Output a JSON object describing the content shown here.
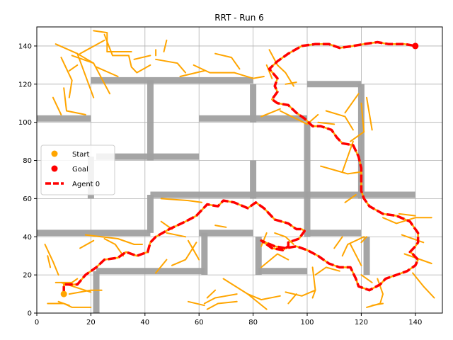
{
  "chart_data": {
    "type": "line",
    "title": "RRT - Run 6",
    "xlabel": "",
    "ylabel": "",
    "xlim": [
      0,
      150
    ],
    "ylim": [
      0,
      150
    ],
    "xticks": [
      0,
      20,
      40,
      60,
      80,
      100,
      120,
      140
    ],
    "yticks": [
      0,
      20,
      40,
      60,
      80,
      100,
      120,
      140
    ],
    "grid": true,
    "legend": {
      "placement": "center-left",
      "entries": [
        {
          "label": "Start",
          "marker": "circle",
          "color": "#ffa500"
        },
        {
          "label": "Goal",
          "marker": "circle",
          "color": "#ff0000"
        },
        {
          "label": "Agent 0",
          "marker": "dashed-line",
          "color": "#ff0000"
        }
      ]
    },
    "colors": {
      "tree": "#ffa500",
      "path": "#ff0000",
      "obstacle": "#a0a0a0",
      "grid": "#b0b0b0"
    },
    "start": [
      10,
      10
    ],
    "goal": [
      140,
      140
    ],
    "obstacles": [
      [
        [
          0,
          102
        ],
        [
          20,
          102
        ]
      ],
      [
        [
          20,
          122
        ],
        [
          80,
          122
        ]
      ],
      [
        [
          42,
          122
        ],
        [
          42,
          80
        ]
      ],
      [
        [
          22,
          82
        ],
        [
          60,
          82
        ]
      ],
      [
        [
          20,
          82
        ],
        [
          20,
          60
        ]
      ],
      [
        [
          42,
          62
        ],
        [
          120,
          62
        ]
      ],
      [
        [
          42,
          62
        ],
        [
          42,
          42
        ]
      ],
      [
        [
          0,
          42
        ],
        [
          42,
          42
        ]
      ],
      [
        [
          60,
          102
        ],
        [
          100,
          102
        ]
      ],
      [
        [
          80,
          120
        ],
        [
          80,
          100
        ]
      ],
      [
        [
          80,
          80
        ],
        [
          80,
          60
        ]
      ],
      [
        [
          100,
          120
        ],
        [
          120,
          120
        ]
      ],
      [
        [
          100,
          100
        ],
        [
          100,
          40
        ]
      ],
      [
        [
          120,
          120
        ],
        [
          120,
          60
        ]
      ],
      [
        [
          120,
          62
        ],
        [
          140,
          62
        ]
      ],
      [
        [
          100,
          42
        ],
        [
          120,
          42
        ]
      ],
      [
        [
          60,
          42
        ],
        [
          80,
          42
        ]
      ],
      [
        [
          62,
          42
        ],
        [
          62,
          20
        ]
      ],
      [
        [
          22,
          22
        ],
        [
          62,
          22
        ]
      ],
      [
        [
          22,
          22
        ],
        [
          22,
          0
        ]
      ],
      [
        [
          82,
          40
        ],
        [
          82,
          20
        ]
      ],
      [
        [
          82,
          22
        ],
        [
          100,
          22
        ]
      ],
      [
        [
          122,
          40
        ],
        [
          122,
          20
        ]
      ]
    ],
    "tree_edges": [
      [
        [
          7,
          141
        ],
        [
          15,
          136
        ],
        [
          21,
          113
        ]
      ],
      [
        [
          15,
          136
        ],
        [
          21,
          131
        ],
        [
          27,
          115
        ]
      ],
      [
        [
          13,
          135
        ],
        [
          21,
          131
        ]
      ],
      [
        [
          9,
          134
        ],
        [
          13,
          122
        ],
        [
          12,
          113
        ]
      ],
      [
        [
          12,
          127
        ],
        [
          15,
          130
        ]
      ],
      [
        [
          6,
          113
        ],
        [
          9,
          104
        ]
      ],
      [
        [
          10,
          118
        ],
        [
          11,
          106
        ],
        [
          18,
          104
        ]
      ],
      [
        [
          16,
          136
        ],
        [
          25,
          143
        ]
      ],
      [
        [
          26,
          137
        ],
        [
          35,
          137
        ]
      ],
      [
        [
          25,
          146
        ],
        [
          28,
          135
        ],
        [
          34,
          135
        ],
        [
          35,
          129
        ],
        [
          37,
          126
        ],
        [
          42,
          130
        ]
      ],
      [
        [
          21,
          148
        ],
        [
          26,
          147
        ],
        [
          26,
          137
        ]
      ],
      [
        [
          36,
          133
        ],
        [
          42,
          135
        ]
      ],
      [
        [
          22,
          129
        ],
        [
          30,
          124
        ]
      ],
      [
        [
          44,
          133
        ],
        [
          52,
          131
        ],
        [
          55,
          126
        ]
      ],
      [
        [
          47,
          137
        ],
        [
          48,
          143
        ]
      ],
      [
        [
          44,
          135
        ],
        [
          44,
          138
        ]
      ],
      [
        [
          58,
          130
        ],
        [
          64,
          126
        ],
        [
          73,
          126
        ]
      ],
      [
        [
          53,
          124
        ],
        [
          62,
          127
        ]
      ],
      [
        [
          66,
          136
        ],
        [
          72,
          134
        ],
        [
          75,
          128
        ]
      ],
      [
        [
          73,
          126
        ],
        [
          80,
          123
        ],
        [
          84,
          124
        ]
      ],
      [
        [
          85,
          130
        ],
        [
          87,
          123
        ]
      ],
      [
        [
          86,
          138
        ],
        [
          89,
          130
        ],
        [
          92,
          126
        ],
        [
          95,
          119
        ]
      ],
      [
        [
          92,
          120
        ],
        [
          96,
          121
        ]
      ],
      [
        [
          90,
          106
        ],
        [
          100,
          99
        ],
        [
          104,
          104
        ]
      ],
      [
        [
          83,
          103
        ],
        [
          90,
          107
        ]
      ],
      [
        [
          104,
          100
        ],
        [
          110,
          99
        ]
      ],
      [
        [
          107,
          106
        ],
        [
          114,
          103
        ],
        [
          117,
          96
        ]
      ],
      [
        [
          105,
          77
        ],
        [
          110,
          75
        ],
        [
          115,
          73
        ],
        [
          120,
          74
        ]
      ],
      [
        [
          113,
          74
        ],
        [
          117,
          90
        ]
      ],
      [
        [
          116,
          90
        ],
        [
          121,
          95
        ]
      ],
      [
        [
          114,
          105
        ],
        [
          119,
          115
        ]
      ],
      [
        [
          120,
          110
        ],
        [
          121,
          95
        ]
      ],
      [
        [
          122,
          113
        ],
        [
          124,
          96
        ]
      ],
      [
        [
          114,
          58
        ],
        [
          118,
          62
        ]
      ],
      [
        [
          128,
          50
        ],
        [
          133,
          47
        ],
        [
          140,
          50
        ],
        [
          146,
          50
        ]
      ],
      [
        [
          134,
          52
        ],
        [
          140,
          51
        ]
      ],
      [
        [
          135,
          41
        ],
        [
          143,
          37
        ]
      ],
      [
        [
          136,
          31
        ],
        [
          146,
          26
        ]
      ],
      [
        [
          139,
          21
        ],
        [
          143,
          14
        ],
        [
          147,
          8
        ]
      ],
      [
        [
          121,
          40
        ],
        [
          115,
          36
        ],
        [
          113,
          30
        ]
      ],
      [
        [
          116,
          36
        ],
        [
          120,
          25
        ]
      ],
      [
        [
          113,
          40
        ],
        [
          110,
          34
        ]
      ],
      [
        [
          120,
          37
        ],
        [
          122,
          40
        ]
      ],
      [
        [
          126,
          18
        ],
        [
          128,
          10
        ],
        [
          127,
          5
        ],
        [
          122,
          3
        ]
      ],
      [
        [
          124,
          4
        ],
        [
          128,
          5
        ]
      ],
      [
        [
          120,
          20
        ],
        [
          124,
          16
        ]
      ],
      [
        [
          103,
          20
        ],
        [
          107,
          24
        ],
        [
          112,
          22
        ]
      ],
      [
        [
          102,
          24
        ],
        [
          103,
          12
        ],
        [
          102,
          8
        ]
      ],
      [
        [
          96,
          10
        ],
        [
          93,
          5
        ]
      ],
      [
        [
          92,
          11
        ],
        [
          98,
          9
        ],
        [
          103,
          12
        ]
      ],
      [
        [
          69,
          18
        ],
        [
          78,
          10
        ],
        [
          83,
          7
        ],
        [
          90,
          9
        ]
      ],
      [
        [
          78,
          10
        ],
        [
          85,
          2
        ]
      ],
      [
        [
          62,
          5
        ],
        [
          66,
          8
        ],
        [
          70,
          9
        ],
        [
          74,
          10
        ]
      ],
      [
        [
          63,
          8
        ],
        [
          66,
          12
        ]
      ],
      [
        [
          56,
          6
        ],
        [
          62,
          4
        ]
      ],
      [
        [
          63,
          2
        ],
        [
          67,
          5
        ],
        [
          74,
          6
        ]
      ],
      [
        [
          88,
          42
        ],
        [
          92,
          40
        ],
        [
          95,
          36
        ]
      ],
      [
        [
          83,
          35
        ],
        [
          85,
          42
        ]
      ],
      [
        [
          83,
          24
        ],
        [
          89,
          31
        ],
        [
          93,
          28
        ]
      ],
      [
        [
          66,
          46
        ],
        [
          70,
          45
        ]
      ],
      [
        [
          59,
          37
        ],
        [
          55,
          28
        ],
        [
          50,
          25
        ]
      ],
      [
        [
          48,
          28
        ],
        [
          44,
          21
        ]
      ],
      [
        [
          46,
          48
        ],
        [
          50,
          44
        ]
      ],
      [
        [
          56,
          38
        ],
        [
          60,
          28
        ]
      ],
      [
        [
          48,
          42
        ],
        [
          55,
          40
        ]
      ],
      [
        [
          46,
          60
        ],
        [
          56,
          59
        ],
        [
          61,
          58
        ]
      ],
      [
        [
          25,
          39
        ],
        [
          29,
          36
        ],
        [
          32,
          30
        ]
      ],
      [
        [
          18,
          41
        ],
        [
          30,
          39
        ],
        [
          36,
          36
        ],
        [
          39,
          36
        ]
      ],
      [
        [
          21,
          38
        ],
        [
          16,
          34
        ]
      ],
      [
        [
          3,
          36
        ],
        [
          6,
          27
        ],
        [
          8,
          20
        ]
      ],
      [
        [
          4,
          30
        ],
        [
          5,
          24
        ]
      ],
      [
        [
          7,
          16
        ],
        [
          13,
          16
        ]
      ],
      [
        [
          12,
          15
        ],
        [
          15,
          18
        ]
      ],
      [
        [
          8,
          6
        ],
        [
          12,
          4
        ]
      ],
      [
        [
          4,
          5
        ],
        [
          10,
          5
        ],
        [
          13,
          3
        ],
        [
          20,
          3
        ]
      ],
      [
        [
          12,
          10
        ],
        [
          20,
          12
        ],
        [
          24,
          12
        ]
      ],
      [
        [
          9,
          16
        ],
        [
          20,
          11
        ]
      ]
    ],
    "agent_path": [
      [
        10,
        10
      ],
      [
        10,
        15
      ],
      [
        15,
        15
      ],
      [
        18,
        20
      ],
      [
        22,
        24
      ],
      [
        25,
        28
      ],
      [
        30,
        29
      ],
      [
        33,
        32
      ],
      [
        37,
        30
      ],
      [
        41,
        32
      ],
      [
        42,
        37
      ],
      [
        44,
        40
      ],
      [
        49,
        44
      ],
      [
        55,
        48
      ],
      [
        59,
        51
      ],
      [
        63,
        57
      ],
      [
        67,
        56
      ],
      [
        69,
        59
      ],
      [
        73,
        58
      ],
      [
        78,
        55
      ],
      [
        81,
        58
      ],
      [
        84,
        55
      ],
      [
        88,
        49
      ],
      [
        93,
        47
      ],
      [
        96,
        44
      ],
      [
        98,
        44
      ],
      [
        99,
        43
      ],
      [
        97,
        39
      ],
      [
        93,
        37
      ],
      [
        93,
        35
      ],
      [
        91,
        33
      ],
      [
        87,
        34
      ],
      [
        85,
        36
      ],
      [
        83,
        38
      ],
      [
        88,
        35
      ],
      [
        92,
        34
      ],
      [
        96,
        35
      ],
      [
        100,
        33
      ],
      [
        104,
        30
      ],
      [
        108,
        26
      ],
      [
        112,
        24
      ],
      [
        116,
        24
      ],
      [
        118,
        18
      ],
      [
        119,
        14
      ],
      [
        123,
        12
      ],
      [
        127,
        15
      ],
      [
        129,
        18
      ],
      [
        133,
        20
      ],
      [
        137,
        22
      ],
      [
        140,
        25
      ],
      [
        141,
        28
      ],
      [
        139,
        31
      ],
      [
        138,
        32
      ],
      [
        140,
        35
      ],
      [
        141,
        37
      ],
      [
        141,
        42
      ],
      [
        138,
        48
      ],
      [
        133,
        51
      ],
      [
        128,
        52
      ],
      [
        123,
        56
      ],
      [
        121,
        60
      ],
      [
        120,
        64
      ],
      [
        120,
        70
      ],
      [
        120,
        76
      ],
      [
        119,
        82
      ],
      [
        117,
        88
      ],
      [
        113,
        89
      ],
      [
        111,
        92
      ],
      [
        109,
        96
      ],
      [
        105,
        98
      ],
      [
        102,
        98
      ],
      [
        99,
        102
      ],
      [
        96,
        105
      ],
      [
        93,
        109
      ],
      [
        89,
        110
      ],
      [
        87,
        112
      ],
      [
        89,
        116
      ],
      [
        88,
        119
      ],
      [
        89,
        123
      ],
      [
        86,
        128
      ],
      [
        89,
        132
      ],
      [
        93,
        136
      ],
      [
        98,
        140
      ],
      [
        103,
        141
      ],
      [
        108,
        141
      ],
      [
        112,
        139
      ],
      [
        117,
        140
      ],
      [
        121,
        141
      ],
      [
        126,
        142
      ],
      [
        130,
        141
      ],
      [
        136,
        141
      ],
      [
        140,
        140
      ]
    ]
  }
}
